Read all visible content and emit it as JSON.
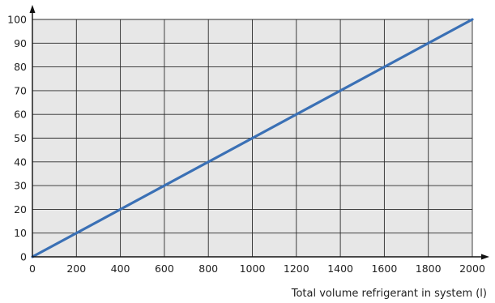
{
  "chart_data": {
    "type": "line",
    "title": "",
    "xlabel": "Total volume refrigerant in system (l)",
    "ylabel": "",
    "xlim": [
      0,
      2000
    ],
    "ylim": [
      0,
      100
    ],
    "x_ticks": [
      0,
      200,
      400,
      600,
      800,
      1000,
      1200,
      1400,
      1600,
      1800,
      2000
    ],
    "y_ticks": [
      0,
      10,
      20,
      30,
      40,
      50,
      60,
      70,
      80,
      90,
      100
    ],
    "x_tick_labels": [
      "0",
      "200",
      "400",
      "600",
      "800",
      "1000",
      "1200",
      "1400",
      "1600",
      "1800",
      "2000"
    ],
    "y_tick_labels": [
      "0",
      "10",
      "20",
      "30",
      "40",
      "50",
      "60",
      "70",
      "80",
      "90",
      "100"
    ],
    "grid": true,
    "legend": "none",
    "series": [
      {
        "x": [
          0,
          2000
        ],
        "y": [
          0,
          100
        ],
        "color": "#3a70b5"
      }
    ],
    "colors": {
      "plot_background": "#e7e7e7",
      "grid": "#2b2b2b",
      "axis": "#111111"
    }
  }
}
